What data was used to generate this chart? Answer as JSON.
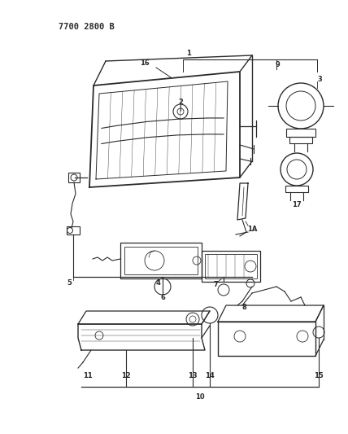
{
  "bg_color": "#ffffff",
  "line_color": "#2a2a2a",
  "title_code": "7700 2800 B",
  "title_fontsize": 7.5,
  "label_fontsize": 6.0
}
